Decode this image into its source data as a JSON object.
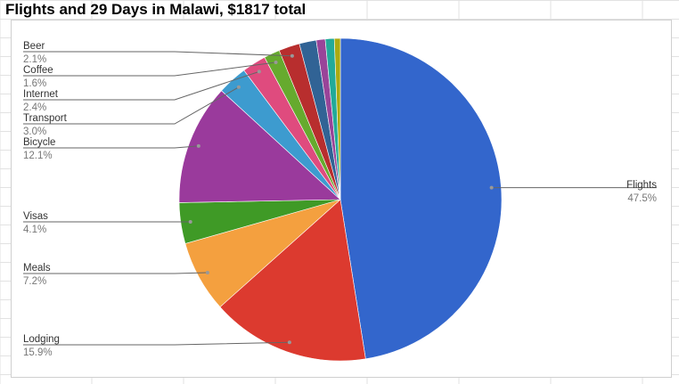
{
  "chart_data": {
    "type": "pie",
    "title": "Flights and 29 Days in Malawi, $1817 total",
    "start_angle": "top, clockwise",
    "legend": "labels with leader lines",
    "slices": [
      {
        "name": "Flights",
        "value": 47.5,
        "label": "47.5%",
        "color": "#3366cc"
      },
      {
        "name": "Lodging",
        "value": 15.9,
        "label": "15.9%",
        "color": "#dc3a2f"
      },
      {
        "name": "Meals",
        "value": 7.2,
        "label": "7.2%",
        "color": "#f4a03f"
      },
      {
        "name": "Visas",
        "value": 4.1,
        "label": "4.1%",
        "color": "#3f9a26"
      },
      {
        "name": "Bicycle",
        "value": 12.1,
        "label": "12.1%",
        "color": "#9a3a9c"
      },
      {
        "name": "Transport",
        "value": 3.0,
        "label": "3.0%",
        "color": "#3d9bcf"
      },
      {
        "name": "Internet",
        "value": 2.4,
        "label": "2.4%",
        "color": "#df4b7e"
      },
      {
        "name": "Coffee",
        "value": 1.6,
        "label": "1.6%",
        "color": "#66aa2e"
      },
      {
        "name": "Beer",
        "value": 2.1,
        "label": "2.1%",
        "color": "#b82e2e"
      },
      {
        "name": "",
        "value": 1.7,
        "label": "",
        "color": "#316395"
      },
      {
        "name": "",
        "value": 0.9,
        "label": "",
        "color": "#994499"
      },
      {
        "name": "",
        "value": 0.9,
        "label": "",
        "color": "#22aa99"
      },
      {
        "name": "",
        "value": 0.6,
        "label": "",
        "color": "#aaaa11"
      }
    ]
  }
}
